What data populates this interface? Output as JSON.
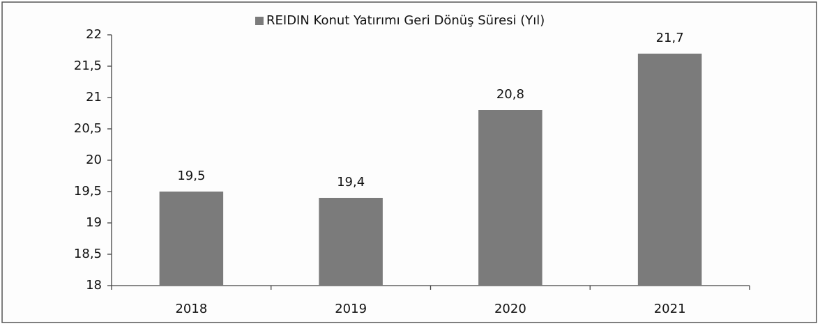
{
  "chart_data": {
    "type": "bar",
    "categories": [
      "2018",
      "2019",
      "2020",
      "2021"
    ],
    "series": [
      {
        "name": "REIDIN Konut Yatırımı Geri Dönüş Süresi (Yıl)",
        "color": "#7b7b7b",
        "values": [
          19.5,
          19.4,
          20.8,
          21.7
        ],
        "value_labels": [
          "19,5",
          "19,4",
          "20,8",
          "21,7"
        ]
      }
    ],
    "ylim": [
      18,
      22
    ],
    "yticks": [
      18,
      {
        "value": 18.5,
        "label": "18,5"
      },
      19,
      {
        "value": 19.5,
        "label": "19,5"
      },
      20,
      {
        "value": 20.5,
        "label": "20,5"
      },
      21,
      {
        "value": 21.5,
        "label": "21,5"
      },
      22
    ],
    "legend": "top",
    "grid": false
  }
}
